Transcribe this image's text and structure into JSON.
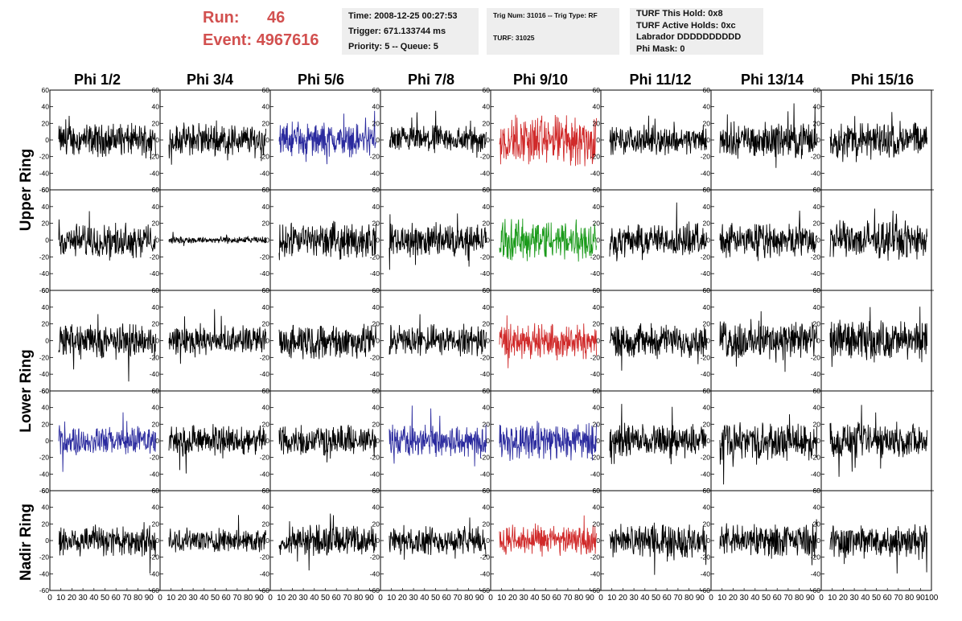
{
  "header": {
    "run_label": "Run:",
    "run_value": "46",
    "event_label": "Event:",
    "event_value": "4967616"
  },
  "info_box_time": {
    "time": "Time: 2008-12-25 00:27:53",
    "trigger": "Trigger: 671.133744 ms",
    "priority": "Priority: 5 -- Queue: 5"
  },
  "info_box_trig": {
    "trig_line": "Trig Num: 31016 -- Trig Type: RF",
    "turf_line": "TURF: 31025"
  },
  "info_box_turf": {
    "hold": "TURF This Hold: 0x8",
    "active_holds": "TURF Active Holds: 0xc",
    "labrador": "Labrador DDDDDDDDDD",
    "phi_mask": "Phi Mask: 0"
  },
  "chart_data": {
    "type": "line",
    "column_headers": [
      "Phi 1/2",
      "Phi 3/4",
      "Phi 5/6",
      "Phi 7/8",
      "Phi 9/10",
      "Phi 11/12",
      "Phi 13/14",
      "Phi 15/16"
    ],
    "row_group_labels": [
      "Upper Ring",
      "Lower Ring",
      "Nadir Ring"
    ],
    "ylim": [
      -60,
      60
    ],
    "yticks": [
      -60,
      -40,
      -20,
      0,
      20,
      40,
      60
    ],
    "xlim": [
      0,
      100
    ],
    "xtick_labels": [
      "0",
      "10",
      "20",
      "30",
      "40",
      "50",
      "60",
      "70",
      "80",
      "90",
      "100"
    ],
    "series_colors": {
      "default": "#000000",
      "blue": "#2a2a9e",
      "red": "#d02a2a",
      "green": "#1a9a1a"
    },
    "colors": [
      [
        "black",
        "black",
        "blue",
        "black",
        "red",
        "black",
        "black",
        "black"
      ],
      [
        "black",
        "black",
        "black",
        "black",
        "green",
        "black",
        "black",
        "black"
      ],
      [
        "black",
        "black",
        "black",
        "black",
        "red",
        "black",
        "black",
        "black"
      ],
      [
        "blue",
        "black",
        "black",
        "blue",
        "blue",
        "black",
        "black",
        "black"
      ],
      [
        "black",
        "black",
        "black",
        "black",
        "red",
        "black",
        "black",
        "black"
      ]
    ],
    "amplitudes": [
      [
        14,
        14,
        14,
        12,
        22,
        12,
        15,
        16
      ],
      [
        14,
        3,
        15,
        14,
        18,
        14,
        14,
        16
      ],
      [
        15,
        12,
        15,
        13,
        15,
        14,
        17,
        17
      ],
      [
        12,
        13,
        13,
        14,
        16,
        14,
        16,
        15
      ],
      [
        14,
        10,
        13,
        12,
        13,
        14,
        14,
        15
      ]
    ]
  }
}
